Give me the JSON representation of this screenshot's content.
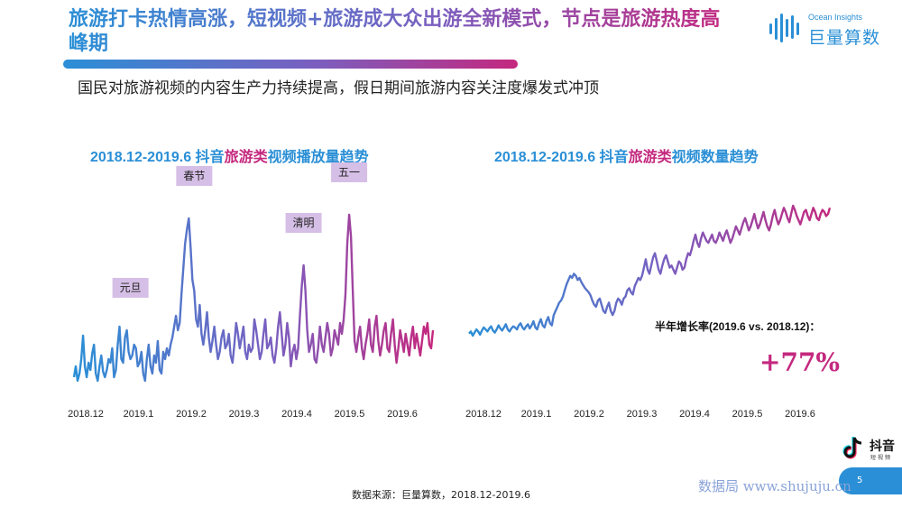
{
  "slide": {
    "title": "旅游打卡热情高涨，短视频+旅游成大众出游全新模式，节点是旅游热度高峰期",
    "subtitle": "国民对旅游视频的内容生产力持续提高，假日期间旅游内容关注度爆发式冲顶",
    "source": "数据来源：巨量算数，2018.12-2019.6",
    "page_number": "5",
    "watermark": "数据局  www.shujuju.cn"
  },
  "brand": {
    "logo_en": "Ocean Insights",
    "logo_cn": "巨量算数",
    "douyin_cn": "抖音",
    "douyin_sub": "短视频"
  },
  "colors": {
    "blue": "#2a8fd6",
    "purple": "#7a5fc0",
    "magenta": "#c4287e",
    "label_bg": "#d6bfe6"
  },
  "icons": {
    "logo": "ocean-insights-logo-icon",
    "douyin": "douyin-note-icon"
  },
  "chart1_title": {
    "prefix": "2018.12-2019.6 抖音",
    "highlight": "旅游类",
    "suffix": "视频播放量趋势"
  },
  "chart2_title": {
    "prefix": "2018.12-2019.6 抖音",
    "highlight": "旅游类",
    "suffix": "视频数量趋势"
  },
  "growth": {
    "label": "半年增长率(2019.6 vs. 2018.12)：",
    "value": "+77%"
  },
  "chart_data": [
    {
      "type": "line",
      "title": "2018.12-2019.6 抖音旅游类视频播放量趋势",
      "xlabel": "",
      "ylabel": "",
      "x_ticks": [
        "2018.12",
        "2019.1",
        "2019.2",
        "2019.3",
        "2019.4",
        "2019.5",
        "2019.6"
      ],
      "grid": false,
      "annotations": [
        {
          "label": "元旦",
          "day": 31
        },
        {
          "label": "春节",
          "day": 66
        },
        {
          "label": "清明",
          "day": 126
        },
        {
          "label": "五一",
          "day": 151
        }
      ],
      "series": [
        {
          "values": [
            12,
            18,
            10,
            14,
            22,
            35,
            18,
            12,
            20,
            16,
            25,
            30,
            14,
            10,
            18,
            24,
            15,
            12,
            16,
            22,
            20,
            28,
            12,
            16,
            30,
            40,
            22,
            20,
            34,
            38,
            26,
            22,
            24,
            30,
            28,
            18,
            20,
            26,
            14,
            10,
            22,
            30,
            18,
            14,
            24,
            20,
            32,
            16,
            14,
            26,
            22,
            28,
            24,
            30,
            34,
            40,
            46,
            38,
            42,
            58,
            72,
            86,
            94,
            100,
            84,
            66,
            60,
            44,
            40,
            52,
            36,
            30,
            38,
            48,
            34,
            26,
            32,
            40,
            30,
            22,
            26,
            34,
            38,
            28,
            30,
            36,
            24,
            20,
            30,
            42,
            36,
            28,
            34,
            40,
            26,
            22,
            30,
            26,
            28,
            44,
            38,
            30,
            22,
            26,
            36,
            44,
            28,
            30,
            34,
            24,
            20,
            28,
            40,
            48,
            36,
            24,
            30,
            42,
            34,
            18,
            26,
            30,
            22,
            28,
            46,
            62,
            74,
            60,
            38,
            26,
            30,
            36,
            22,
            20,
            28,
            40,
            30,
            26,
            34,
            42,
            36,
            24,
            28,
            38,
            34,
            30,
            42,
            36,
            44,
            58,
            86,
            102,
            90,
            60,
            32,
            26,
            34,
            40,
            28,
            22,
            30,
            36,
            44,
            30,
            26,
            40,
            46,
            32,
            24,
            30,
            38,
            42,
            28,
            26,
            36,
            44,
            30,
            20,
            28,
            38,
            32,
            26,
            36,
            30,
            24,
            34,
            40,
            28,
            36,
            30,
            24,
            32,
            40,
            36,
            42,
            30,
            28,
            38
          ]
        }
      ]
    },
    {
      "type": "line",
      "title": "2018.12-2019.6 抖音旅游类视频数量趋势",
      "xlabel": "",
      "ylabel": "",
      "x_ticks": [
        "2018.12",
        "2019.1",
        "2019.2",
        "2019.3",
        "2019.4",
        "2019.5",
        "2019.6"
      ],
      "grid": false,
      "series": [
        {
          "values": [
            8,
            10,
            6,
            9,
            12,
            10,
            7,
            11,
            14,
            12,
            10,
            13,
            15,
            11,
            9,
            12,
            16,
            13,
            11,
            14,
            17,
            12,
            10,
            13,
            15,
            14,
            12,
            16,
            18,
            14,
            12,
            15,
            17,
            13,
            16,
            20,
            14,
            12,
            18,
            22,
            16,
            14,
            20,
            24,
            18,
            16,
            26,
            30,
            34,
            38,
            40,
            44,
            50,
            56,
            60,
            64,
            62,
            66,
            64,
            60,
            62,
            58,
            55,
            52,
            50,
            48,
            45,
            40,
            36,
            34,
            40,
            42,
            36,
            30,
            28,
            34,
            38,
            30,
            26,
            30,
            38,
            42,
            40,
            36,
            42,
            44,
            50,
            52,
            48,
            46,
            54,
            58,
            62,
            60,
            64,
            72,
            80,
            70,
            66,
            74,
            82,
            86,
            78,
            70,
            66,
            74,
            80,
            84,
            78,
            72,
            74,
            70,
            66,
            72,
            78,
            76,
            70,
            72,
            80,
            86,
            84,
            90,
            98,
            104,
            96,
            92,
            100,
            106,
            102,
            98,
            96,
            100,
            104,
            98,
            96,
            100,
            106,
            102,
            98,
            104,
            108,
            102,
            96,
            100,
            106,
            112,
            108,
            104,
            110,
            116,
            120,
            114,
            108,
            112,
            118,
            124,
            116,
            110,
            114,
            120,
            126,
            118,
            112,
            108,
            114,
            122,
            128,
            120,
            114,
            118,
            124,
            130,
            126,
            120,
            116,
            124,
            132,
            128,
            122,
            118,
            114,
            120,
            126,
            128,
            122,
            118,
            124,
            130,
            126,
            120,
            118,
            124,
            128,
            126,
            122,
            124,
            130
          ]
        }
      ]
    }
  ]
}
